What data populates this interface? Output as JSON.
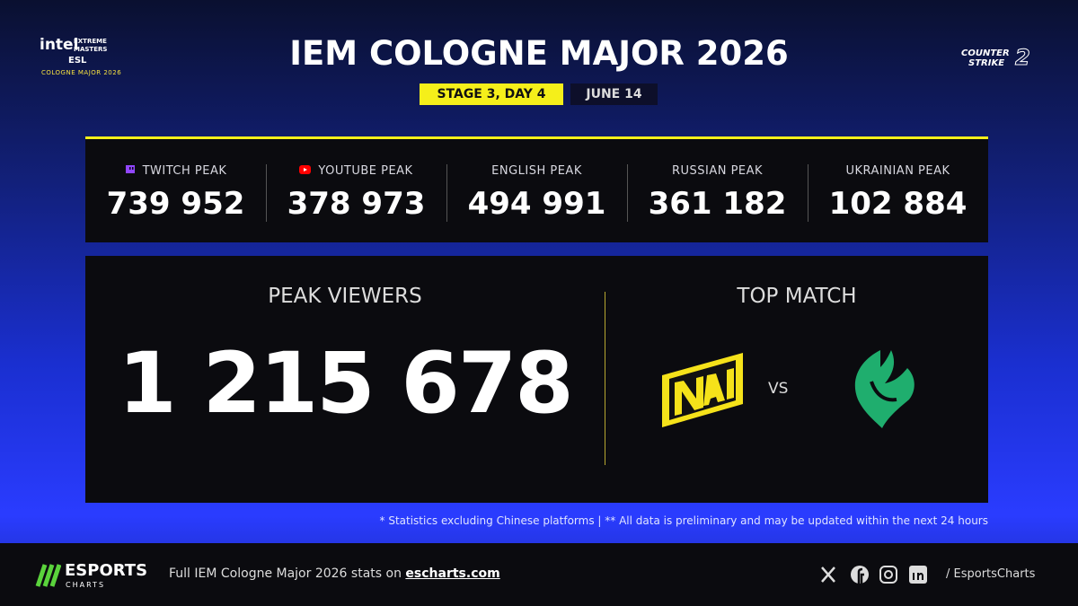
{
  "header": {
    "logo": {
      "brand": "intel",
      "line1": "EXTREME",
      "line2": "MASTERS",
      "org": "ESL",
      "event": "COLOGNE MAJOR 2026"
    },
    "title": "IEM COLOGNE MAJOR 2026",
    "stage": "STAGE 3, DAY 4",
    "date": "JUNE 14",
    "game_logo": {
      "line1": "COUNTER",
      "line2": "STRIKE",
      "number": "2"
    }
  },
  "stats": [
    {
      "label": "TWITCH PEAK",
      "value": "739 952"
    },
    {
      "label": "YOUTUBE PEAK",
      "value": "378 973"
    },
    {
      "label": "ENGLISH PEAK",
      "value": "494 991"
    },
    {
      "label": "RUSSIAN PEAK",
      "value": "361 182"
    },
    {
      "label": "UKRAINIAN PEAK",
      "value": "102 884"
    }
  ],
  "main": {
    "peak_label": "PEAK VIEWERS",
    "peak_value": "1 215 678",
    "top_match_label": "TOP MATCH",
    "vs": "VS"
  },
  "footnote": "* Statistics excluding Chinese platforms | ** All data is preliminary and may be updated within the next 24 hours",
  "footer": {
    "brand": {
      "line1": "ESPORTS",
      "line2": "CHARTS"
    },
    "cta_text": "Full IEM Cologne Major 2026 stats on",
    "cta_link": "escharts.com",
    "handle": "/ EsportsCharts"
  }
}
